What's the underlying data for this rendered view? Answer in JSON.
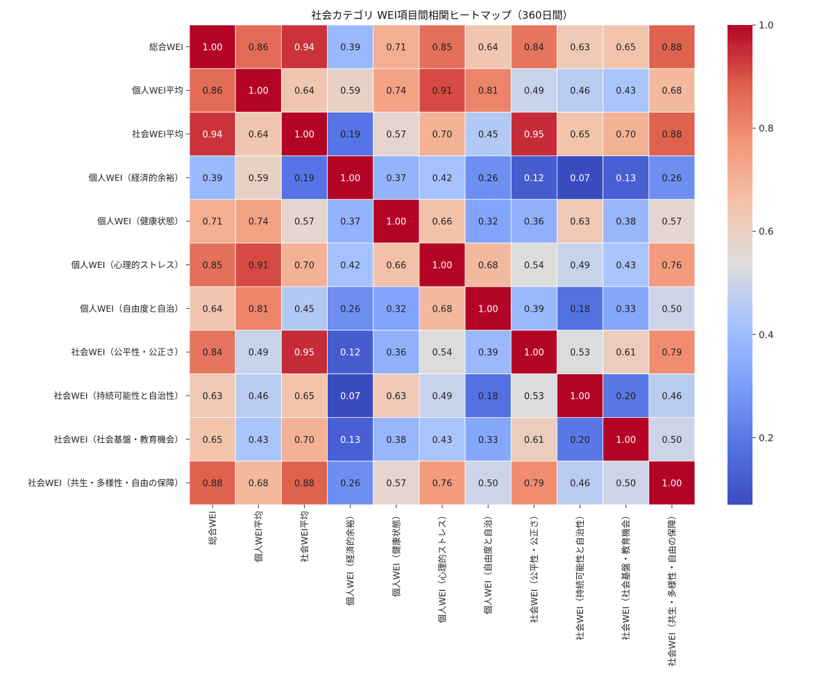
{
  "chart_data": {
    "type": "heatmap",
    "title": "社会カテゴリ WEI項目間相関ヒートマップ（360日間）",
    "xlabel": "",
    "ylabel": "",
    "labels": [
      "総合WEI",
      "個人WEI平均",
      "社会WEI平均",
      "個人WEI（経済的余裕）",
      "個人WEI（健康状態）",
      "個人WEI（心理的ストレス）",
      "個人WEI（自由度と自治）",
      "社会WEI（公平性・公正さ）",
      "社会WEI（持続可能性と自治性）",
      "社会WEI（社会基盤・教育機会）",
      "社会WEI（共生・多様性・自由の保障）"
    ],
    "matrix": [
      [
        1.0,
        0.86,
        0.94,
        0.39,
        0.71,
        0.85,
        0.64,
        0.84,
        0.63,
        0.65,
        0.88
      ],
      [
        0.86,
        1.0,
        0.64,
        0.59,
        0.74,
        0.91,
        0.81,
        0.49,
        0.46,
        0.43,
        0.68
      ],
      [
        0.94,
        0.64,
        1.0,
        0.19,
        0.57,
        0.7,
        0.45,
        0.95,
        0.65,
        0.7,
        0.88
      ],
      [
        0.39,
        0.59,
        0.19,
        1.0,
        0.37,
        0.42,
        0.26,
        0.12,
        0.07,
        0.13,
        0.26
      ],
      [
        0.71,
        0.74,
        0.57,
        0.37,
        1.0,
        0.66,
        0.32,
        0.36,
        0.63,
        0.38,
        0.57
      ],
      [
        0.85,
        0.91,
        0.7,
        0.42,
        0.66,
        1.0,
        0.68,
        0.54,
        0.49,
        0.43,
        0.76
      ],
      [
        0.64,
        0.81,
        0.45,
        0.26,
        0.32,
        0.68,
        1.0,
        0.39,
        0.18,
        0.33,
        0.5
      ],
      [
        0.84,
        0.49,
        0.95,
        0.12,
        0.36,
        0.54,
        0.39,
        1.0,
        0.53,
        0.61,
        0.79
      ],
      [
        0.63,
        0.46,
        0.65,
        0.07,
        0.63,
        0.49,
        0.18,
        0.53,
        1.0,
        0.2,
        0.46
      ],
      [
        0.65,
        0.43,
        0.7,
        0.13,
        0.38,
        0.43,
        0.33,
        0.61,
        0.2,
        1.0,
        0.5
      ],
      [
        0.88,
        0.68,
        0.88,
        0.26,
        0.57,
        0.76,
        0.5,
        0.79,
        0.46,
        0.5,
        1.0
      ]
    ],
    "colormap": "coolwarm",
    "value_format": "2 decimals",
    "color_range": [
      0.07,
      1.0
    ],
    "colorbar_ticks": [
      "0.2",
      "0.4",
      "0.6",
      "0.8",
      "1.0"
    ],
    "colorbar_tick_values": [
      0.2,
      0.4,
      0.6,
      0.8,
      1.0
    ],
    "grid": false,
    "legend": "colorbar-right"
  },
  "colors": {
    "low": "#3b4cc0",
    "mid": "#dddddd",
    "high": "#b40426",
    "cell_border": "#ffffff",
    "text": "#222222"
  }
}
